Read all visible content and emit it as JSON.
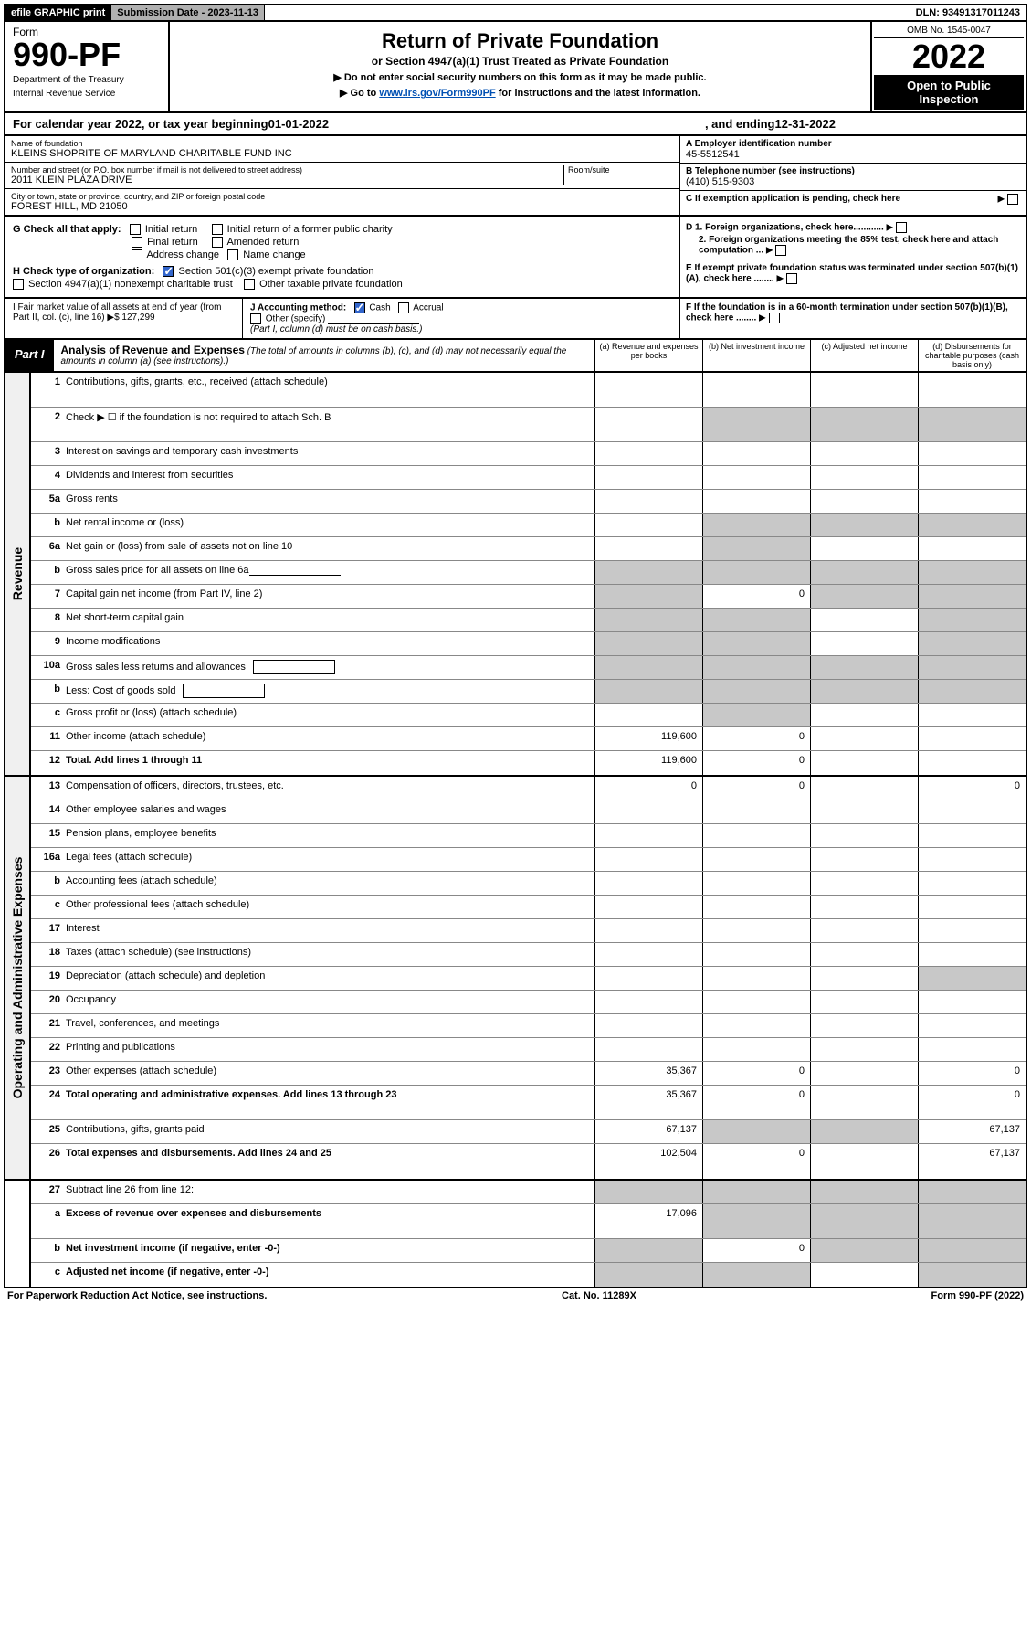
{
  "top_bar": {
    "efile": "efile GRAPHIC print",
    "submission_label": "Submission Date - 2023-11-13",
    "dln": "DLN: 93491317011243"
  },
  "header": {
    "form_word": "Form",
    "form_no": "990-PF",
    "dept1": "Department of the Treasury",
    "dept2": "Internal Revenue Service",
    "title": "Return of Private Foundation",
    "subtitle": "or Section 4947(a)(1) Trust Treated as Private Foundation",
    "note1": "▶ Do not enter social security numbers on this form as it may be made public.",
    "note2_pre": "▶ Go to ",
    "note2_link": "www.irs.gov/Form990PF",
    "note2_post": " for instructions and the latest information.",
    "omb": "OMB No. 1545-0047",
    "year": "2022",
    "open": "Open to Public Inspection"
  },
  "cal_year": {
    "pre": "For calendar year 2022, or tax year beginning ",
    "begin": "01-01-2022",
    "mid": ", and ending ",
    "end": "12-31-2022"
  },
  "id": {
    "name_label": "Name of foundation",
    "name": "KLEINS SHOPRITE OF MARYLAND CHARITABLE FUND INC",
    "addr_label": "Number and street (or P.O. box number if mail is not delivered to street address)",
    "addr": "2011 KLEIN PLAZA DRIVE",
    "room_label": "Room/suite",
    "city_label": "City or town, state or province, country, and ZIP or foreign postal code",
    "city": "FOREST HILL, MD  21050",
    "a_label": "A Employer identification number",
    "a_val": "45-5512541",
    "b_label": "B Telephone number (see instructions)",
    "b_val": "(410) 515-9303",
    "c_label": "C If exemption application is pending, check here"
  },
  "checks": {
    "g": "G Check all that apply:",
    "g1": "Initial return",
    "g2": "Initial return of a former public charity",
    "g3": "Final return",
    "g4": "Amended return",
    "g5": "Address change",
    "g6": "Name change",
    "h": "H Check type of organization:",
    "h1": "Section 501(c)(3) exempt private foundation",
    "h2": "Section 4947(a)(1) nonexempt charitable trust",
    "h3": "Other taxable private foundation",
    "d1": "D 1. Foreign organizations, check here............",
    "d2": "2. Foreign organizations meeting the 85% test, check here and attach computation ...",
    "e": "E  If exempt private foundation status was terminated under section 507(b)(1)(A), check here ........"
  },
  "fmv": {
    "i_label": "I Fair market value of all assets at end of year (from Part II, col. (c), line 16)",
    "i_arrow": "▶$",
    "i_val": "127,299",
    "j_label": "J Accounting method:",
    "j_cash": "Cash",
    "j_accrual": "Accrual",
    "j_other": "Other (specify)",
    "j_note": "(Part I, column (d) must be on cash basis.)",
    "f": "F  If the foundation is in a 60-month termination under section 507(b)(1)(B), check here ........"
  },
  "part1": {
    "label": "Part I",
    "title": "Analysis of Revenue and Expenses",
    "note": " (The total of amounts in columns (b), (c), and (d) may not necessarily equal the amounts in column (a) (see instructions).)",
    "col_a": "(a) Revenue and expenses per books",
    "col_b": "(b) Net investment income",
    "col_c": "(c) Adjusted net income",
    "col_d": "(d) Disbursements for charitable purposes (cash basis only)"
  },
  "revenue_rows": [
    {
      "n": "1",
      "d": "Contributions, gifts, grants, etc., received (attach schedule)",
      "tall": true
    },
    {
      "n": "2",
      "d": "Check ▶ ☐ if the foundation is not required to attach Sch. B",
      "tall": true,
      "grey_bcd": true
    },
    {
      "n": "3",
      "d": "Interest on savings and temporary cash investments"
    },
    {
      "n": "4",
      "d": "Dividends and interest from securities"
    },
    {
      "n": "5a",
      "d": "Gross rents"
    },
    {
      "n": "b",
      "d": "Net rental income or (loss)",
      "grey_bcd": true
    },
    {
      "n": "6a",
      "d": "Net gain or (loss) from sale of assets not on line 10",
      "grey_b": true
    },
    {
      "n": "b",
      "d": "Gross sales price for all assets on line 6a",
      "grey_all": true,
      "has_line": true
    },
    {
      "n": "7",
      "d": "Capital gain net income (from Part IV, line 2)",
      "b": "0",
      "grey_acd_not_b": true
    },
    {
      "n": "8",
      "d": "Net short-term capital gain",
      "grey_abd": true
    },
    {
      "n": "9",
      "d": "Income modifications",
      "grey_abd": true
    },
    {
      "n": "10a",
      "d": "Gross sales less returns and allowances",
      "grey_all": true,
      "has_box": true
    },
    {
      "n": "b",
      "d": "Less: Cost of goods sold",
      "grey_all": true,
      "has_box": true
    },
    {
      "n": "c",
      "d": "Gross profit or (loss) (attach schedule)",
      "grey_b": true
    },
    {
      "n": "11",
      "d": "Other income (attach schedule)",
      "a": "119,600",
      "b": "0"
    },
    {
      "n": "12",
      "d": "Total. Add lines 1 through 11",
      "bold": true,
      "a": "119,600",
      "b": "0"
    }
  ],
  "expense_rows": [
    {
      "n": "13",
      "d": "Compensation of officers, directors, trustees, etc.",
      "a": "0",
      "b": "0",
      "d_": "0"
    },
    {
      "n": "14",
      "d": "Other employee salaries and wages"
    },
    {
      "n": "15",
      "d": "Pension plans, employee benefits"
    },
    {
      "n": "16a",
      "d": "Legal fees (attach schedule)"
    },
    {
      "n": "b",
      "d": "Accounting fees (attach schedule)"
    },
    {
      "n": "c",
      "d": "Other professional fees (attach schedule)"
    },
    {
      "n": "17",
      "d": "Interest"
    },
    {
      "n": "18",
      "d": "Taxes (attach schedule) (see instructions)"
    },
    {
      "n": "19",
      "d": "Depreciation (attach schedule) and depletion",
      "grey_d": true
    },
    {
      "n": "20",
      "d": "Occupancy"
    },
    {
      "n": "21",
      "d": "Travel, conferences, and meetings"
    },
    {
      "n": "22",
      "d": "Printing and publications"
    },
    {
      "n": "23",
      "d": "Other expenses (attach schedule)",
      "a": "35,367",
      "b": "0",
      "d_": "0"
    },
    {
      "n": "24",
      "d": "Total operating and administrative expenses. Add lines 13 through 23",
      "bold": true,
      "tall": true,
      "a": "35,367",
      "b": "0",
      "d_": "0"
    },
    {
      "n": "25",
      "d": "Contributions, gifts, grants paid",
      "a": "67,137",
      "grey_bc": true,
      "d_": "67,137"
    },
    {
      "n": "26",
      "d": "Total expenses and disbursements. Add lines 24 and 25",
      "bold": true,
      "tall": true,
      "a": "102,504",
      "b": "0",
      "d_": "67,137"
    }
  ],
  "net_rows": [
    {
      "n": "27",
      "d": "Subtract line 26 from line 12:",
      "grey_all": true
    },
    {
      "n": "a",
      "d": "Excess of revenue over expenses and disbursements",
      "bold": true,
      "a": "17,096",
      "grey_bcd": true,
      "tall": true
    },
    {
      "n": "b",
      "d": "Net investment income (if negative, enter -0-)",
      "bold": true,
      "grey_a": true,
      "b": "0",
      "grey_cd": true
    },
    {
      "n": "c",
      "d": "Adjusted net income (if negative, enter -0-)",
      "bold": true,
      "grey_ab": true,
      "grey_d": true
    }
  ],
  "side": {
    "rev": "Revenue",
    "exp": "Operating and Administrative Expenses"
  },
  "footer": {
    "left": "For Paperwork Reduction Act Notice, see instructions.",
    "mid": "Cat. No. 11289X",
    "right": "Form 990-PF (2022)"
  }
}
